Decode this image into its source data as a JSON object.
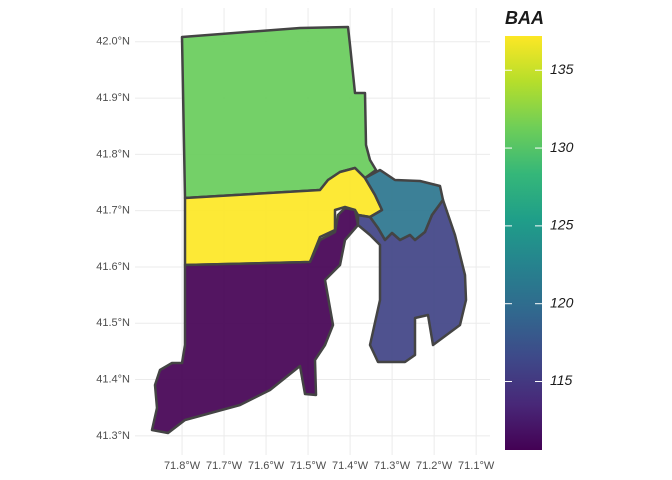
{
  "chart_data": {
    "type": "choropleth",
    "values": [
      131,
      137.2,
      110.6,
      121,
      116
    ],
    "colormap": "viridis",
    "legend_title": "BAA",
    "clim": [
      110.6,
      137.2
    ],
    "legend_ticks": [
      115,
      120,
      125,
      130,
      135
    ],
    "xlim": [
      -71.912,
      -71.067
    ],
    "ylim": [
      41.266,
      42.06
    ],
    "xticks": [
      {
        "value": -71.8,
        "label": "71.8°W"
      },
      {
        "value": -71.7,
        "label": "71.7°W"
      },
      {
        "value": -71.6,
        "label": "71.6°W"
      },
      {
        "value": -71.5,
        "label": "71.5°W"
      },
      {
        "value": -71.4,
        "label": "71.4°W"
      },
      {
        "value": -71.3,
        "label": "71.3°W"
      },
      {
        "value": -71.2,
        "label": "71.2°W"
      },
      {
        "value": -71.1,
        "label": "71.1°W"
      }
    ],
    "yticks": [
      {
        "value": 41.3,
        "label": "41.3°N"
      },
      {
        "value": 41.4,
        "label": "41.4°N"
      },
      {
        "value": 41.5,
        "label": "41.5°N"
      },
      {
        "value": 41.6,
        "label": "41.6°N"
      },
      {
        "value": 41.7,
        "label": "41.7°N"
      },
      {
        "value": 41.8,
        "label": "41.8°N"
      },
      {
        "value": 41.9,
        "label": "41.9°N"
      },
      {
        "value": 42.0,
        "label": "42.0°N"
      }
    ],
    "grid": true
  }
}
